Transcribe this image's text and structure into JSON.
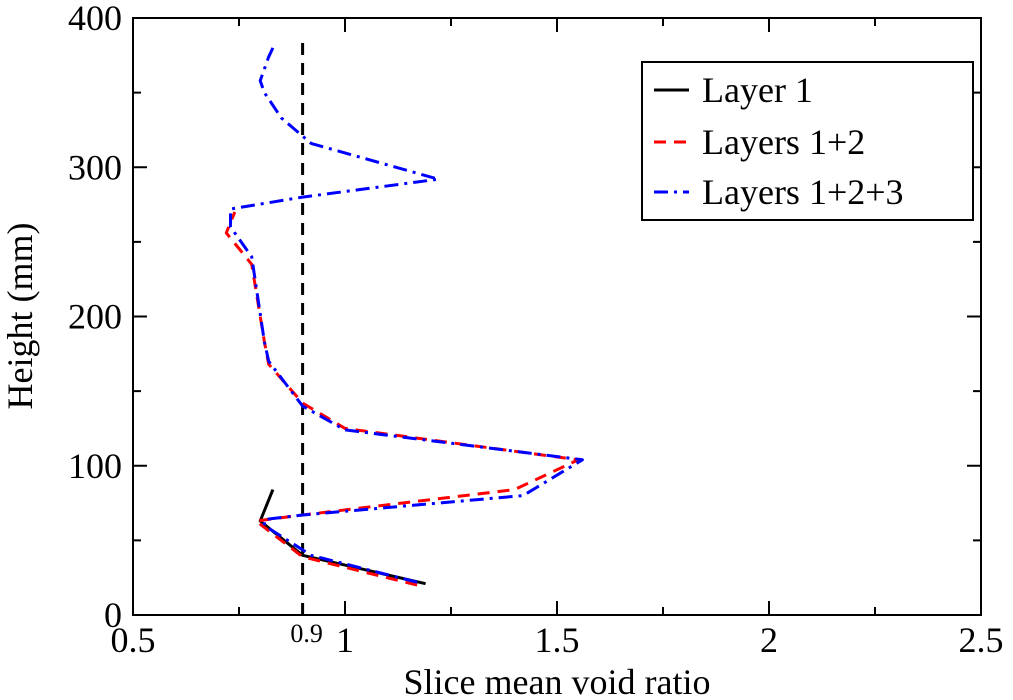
{
  "chart_data": {
    "type": "line",
    "title": "",
    "xlabel": "Slice mean void ratio",
    "ylabel": "Height (mm)",
    "xlim": [
      0.5,
      2.5
    ],
    "ylim": [
      0,
      400
    ],
    "xticks": [
      {
        "value": 0.5,
        "label": "0.5"
      },
      {
        "value": 1.0,
        "label": "1"
      },
      {
        "value": 1.5,
        "label": "1.5"
      },
      {
        "value": 2.0,
        "label": "2"
      },
      {
        "value": 2.5,
        "label": "2.5"
      }
    ],
    "yticks": [
      {
        "value": 0,
        "label": "0"
      },
      {
        "value": 100,
        "label": "100"
      },
      {
        "value": 200,
        "label": "200"
      },
      {
        "value": 300,
        "label": "300"
      },
      {
        "value": 400,
        "label": "400"
      }
    ],
    "reference_line": {
      "x": 0.9,
      "label": "0.9",
      "y_range": [
        0,
        385
      ],
      "color": "#000000",
      "style": "dashed"
    },
    "legend_position": "top-right",
    "series": [
      {
        "name": "Layer 1",
        "color": "#000000",
        "style": "solid",
        "points": [
          [
            1.19,
            21
          ],
          [
            0.9,
            40
          ],
          [
            0.8,
            63
          ],
          [
            0.83,
            84
          ]
        ]
      },
      {
        "name": "Layers 1+2",
        "color": "#ff0000",
        "style": "dashed",
        "points": [
          [
            1.17,
            20
          ],
          [
            0.9,
            39
          ],
          [
            0.79,
            63
          ],
          [
            0.9,
            67
          ],
          [
            1.4,
            84
          ],
          [
            1.55,
            104
          ],
          [
            1.0,
            125
          ],
          [
            0.9,
            142
          ],
          [
            0.82,
            168
          ],
          [
            0.81,
            183
          ],
          [
            0.78,
            235
          ],
          [
            0.72,
            256
          ],
          [
            0.74,
            270
          ]
        ]
      },
      {
        "name": "Layers 1+2+3",
        "color": "#0000ff",
        "style": "dashdot",
        "points": [
          [
            1.17,
            22
          ],
          [
            0.92,
            40
          ],
          [
            0.81,
            60
          ],
          [
            0.81,
            64
          ],
          [
            0.9,
            67
          ],
          [
            1.42,
            80
          ],
          [
            1.56,
            104
          ],
          [
            1.0,
            124
          ],
          [
            0.9,
            140
          ],
          [
            0.82,
            170
          ],
          [
            0.81,
            183
          ],
          [
            0.78,
            240
          ],
          [
            0.73,
            260
          ],
          [
            0.73,
            272
          ],
          [
            0.9,
            280
          ],
          [
            1.22,
            292
          ],
          [
            0.92,
            316
          ],
          [
            0.85,
            333
          ],
          [
            0.81,
            350
          ],
          [
            0.8,
            358
          ],
          [
            0.82,
            374
          ],
          [
            0.83,
            380
          ]
        ]
      }
    ]
  }
}
